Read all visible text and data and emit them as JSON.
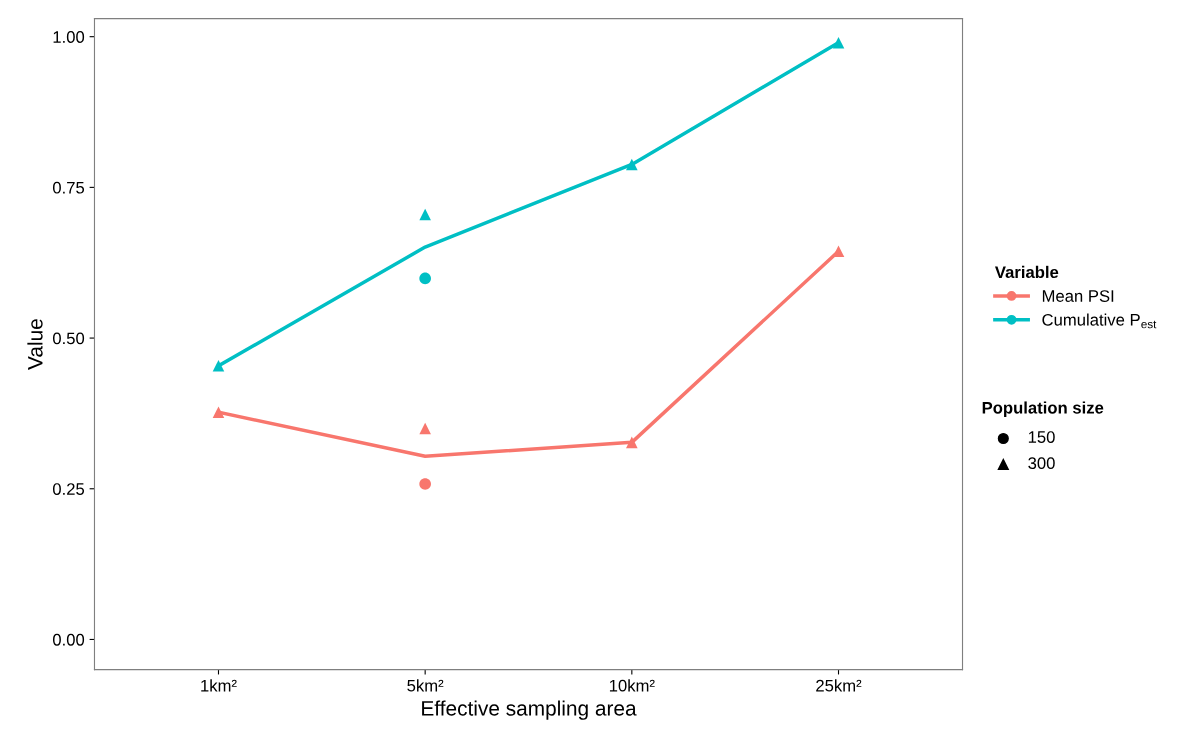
{
  "chart_data": {
    "type": "line",
    "xlabel": "Effective sampling area",
    "ylabel": "Value",
    "categories": [
      "1km²",
      "5km²",
      "10km²",
      "25km²"
    ],
    "ylim": [
      -0.05,
      1.03
    ],
    "yticks": [
      {
        "value": 0,
        "label": "0.00"
      },
      {
        "value": 0.25,
        "label": "0.25"
      },
      {
        "value": 0.5,
        "label": "0.50"
      },
      {
        "value": 0.75,
        "label": "0.75"
      },
      {
        "value": 1,
        "label": "1.00"
      }
    ],
    "grid": false,
    "legend": "right",
    "legend_title": [
      "Variable",
      "Population size"
    ],
    "annotations": [
      "150",
      "300"
    ],
    "series": [
      {
        "name": "Mean PSI",
        "color": "#f8766d",
        "values": [
          0.377,
          0.304,
          0.327,
          0.644
        ]
      },
      {
        "name": "Cumulative P$_{est}$",
        "color": "#00bfc4",
        "values": [
          0.454,
          0.651,
          0.788,
          0.99
        ]
      },
      {
        "type": "scatter",
        "marker": "circle",
        "color": "#f8766d",
        "values": [
          null,
          0.258,
          null,
          null
        ]
      },
      {
        "type": "scatter",
        "marker": "triangle",
        "color": "#f8766d",
        "values": [
          0.377,
          0.35,
          0.327,
          0.644
        ]
      },
      {
        "type": "scatter",
        "marker": "circle",
        "color": "#00bfc4",
        "values": [
          null,
          0.599,
          null,
          null
        ]
      },
      {
        "type": "scatter",
        "marker": "triangle",
        "color": "#00bfc4",
        "values": [
          0.454,
          0.705,
          0.788,
          0.99
        ]
      }
    ]
  }
}
